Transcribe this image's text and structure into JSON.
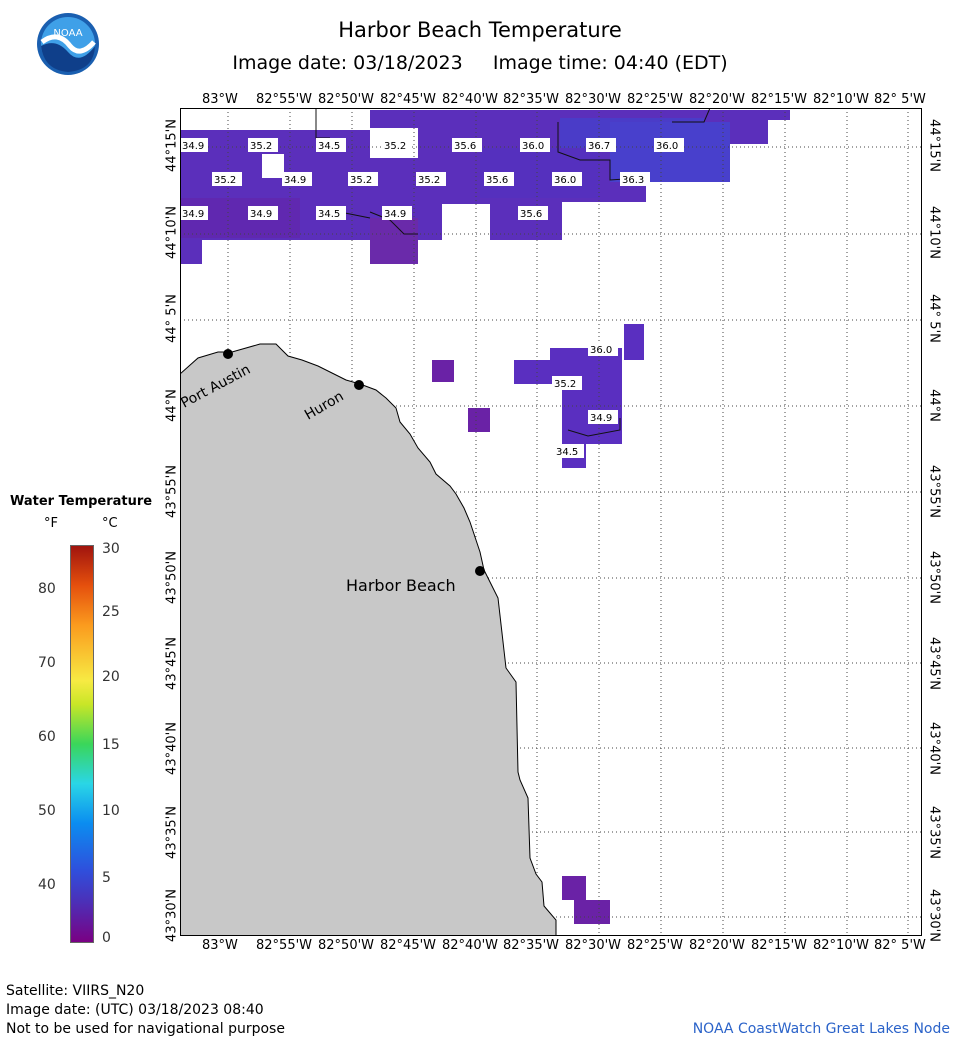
{
  "header": {
    "title": "Harbor Beach Temperature",
    "subtitle": "Image date: 03/18/2023     Image time: 04:40 (EDT)",
    "logo_text": "NOAA"
  },
  "map": {
    "lon_labels": [
      "83°W",
      "82°55'W",
      "82°50'W",
      "82°45'W",
      "82°40'W",
      "82°35'W",
      "82°30'W",
      "82°25'W",
      "82°20'W",
      "82°15'W",
      "82°10'W",
      "82° 5'W"
    ],
    "lat_labels": [
      "44°15'N",
      "44°10'N",
      "44° 5'N",
      "44°N",
      "43°55'N",
      "43°50'N",
      "43°45'N",
      "43°40'N",
      "43°35'N",
      "43°30'N"
    ],
    "cities": [
      {
        "name": "Port Austin"
      },
      {
        "name": "Huron"
      },
      {
        "name": "Harbor Beach"
      }
    ],
    "temperature_labels": [
      "34.9",
      "35.2",
      "34.5",
      "35.2",
      "35.6",
      "36.0",
      "36.7",
      "36.0",
      "35.2",
      "34.9",
      "35.2",
      "35.2",
      "35.6",
      "36.0",
      "36.3",
      "34.9",
      "34.9",
      "34.5",
      "34.9",
      "35.6",
      "36.0",
      "35.2",
      "34.9",
      "34.5"
    ],
    "land_color": "#c8c8c8",
    "water_color": "#5a2fc0"
  },
  "legend": {
    "title": "Water Temperature",
    "unit_f": "°F",
    "unit_c": "°C",
    "f_ticks": [
      "80",
      "70",
      "60",
      "50",
      "40"
    ],
    "c_ticks": [
      "30",
      "25",
      "20",
      "15",
      "10",
      "5",
      "0"
    ]
  },
  "footer": {
    "satellite": "Satellite: VIIRS_N20",
    "utc_date": "Image date: (UTC) 03/18/2023  08:40",
    "disclaimer": "Not to be used for navigational purpose",
    "credit": "NOAA CoastWatch Great Lakes Node"
  }
}
